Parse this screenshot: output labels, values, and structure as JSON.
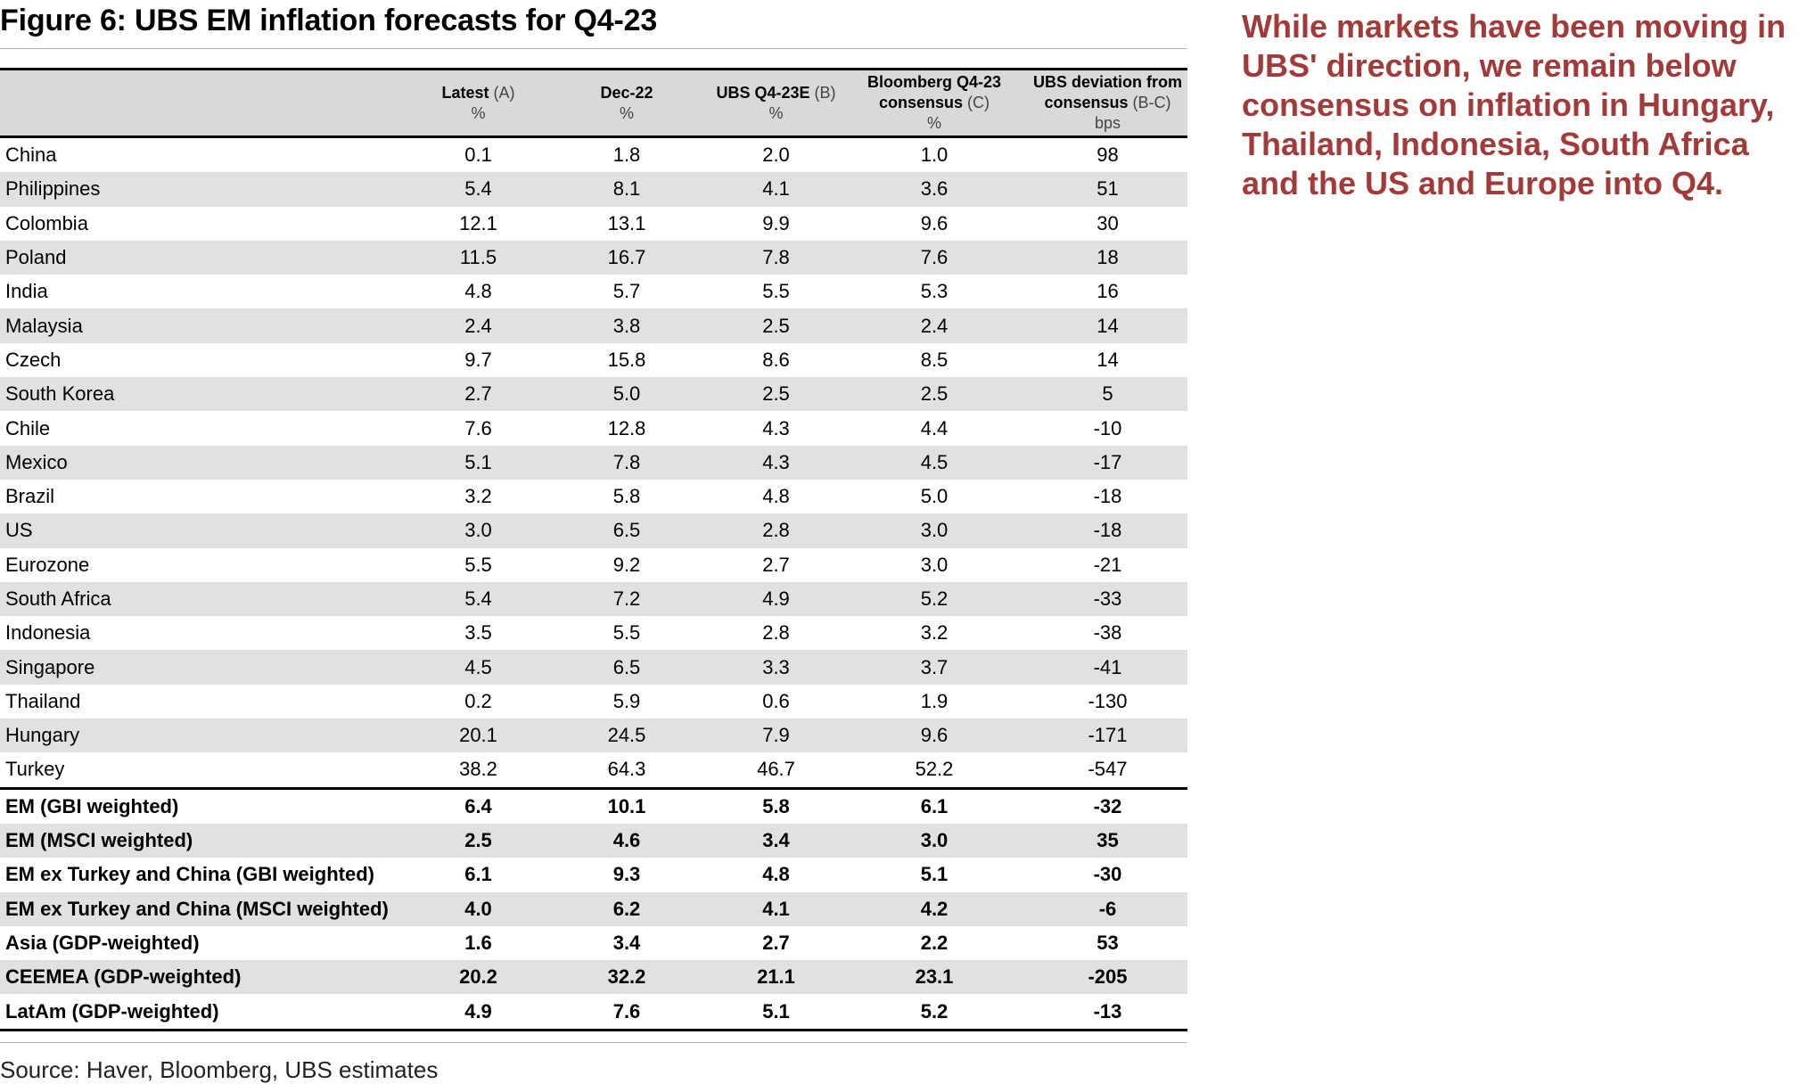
{
  "title": "Figure 6: UBS EM inflation forecasts for Q4-23",
  "side_note": "While markets have been moving in UBS' direction, we remain below consensus on inflation in Hungary, Thailand, Indonesia, South Africa and the US and Europe into Q4.",
  "source": "Source: Haver, Bloomberg, UBS estimates",
  "colors": {
    "note_text": "#a33a3a",
    "row_shade": "#e1e1e1",
    "header_shade": "#d9d9d9"
  },
  "columns": [
    {
      "label": "",
      "suffix": "",
      "unit": ""
    },
    {
      "label": "Latest",
      "suffix": "(A)",
      "unit": "%"
    },
    {
      "label": "Dec-22",
      "suffix": "",
      "unit": "%"
    },
    {
      "label": "UBS Q4-23E",
      "suffix": "(B)",
      "unit": "%"
    },
    {
      "label": "Bloomberg Q4-23 consensus",
      "label_line1": "Bloomberg Q4-23",
      "label_line2": "consensus",
      "suffix": "(C)",
      "unit": "%"
    },
    {
      "label": "UBS deviation from consensus",
      "label_line1": "UBS deviation from",
      "label_line2": "consensus",
      "suffix": "(B-C)",
      "unit": "bps"
    }
  ],
  "rows": [
    [
      "China",
      "0.1",
      "1.8",
      "2.0",
      "1.0",
      "98"
    ],
    [
      "Philippines",
      "5.4",
      "8.1",
      "4.1",
      "3.6",
      "51"
    ],
    [
      "Colombia",
      "12.1",
      "13.1",
      "9.9",
      "9.6",
      "30"
    ],
    [
      "Poland",
      "11.5",
      "16.7",
      "7.8",
      "7.6",
      "18"
    ],
    [
      "India",
      "4.8",
      "5.7",
      "5.5",
      "5.3",
      "16"
    ],
    [
      "Malaysia",
      "2.4",
      "3.8",
      "2.5",
      "2.4",
      "14"
    ],
    [
      "Czech",
      "9.7",
      "15.8",
      "8.6",
      "8.5",
      "14"
    ],
    [
      "South Korea",
      "2.7",
      "5.0",
      "2.5",
      "2.5",
      "5"
    ],
    [
      "Chile",
      "7.6",
      "12.8",
      "4.3",
      "4.4",
      "-10"
    ],
    [
      "Mexico",
      "5.1",
      "7.8",
      "4.3",
      "4.5",
      "-17"
    ],
    [
      "Brazil",
      "3.2",
      "5.8",
      "4.8",
      "5.0",
      "-18"
    ],
    [
      "US",
      "3.0",
      "6.5",
      "2.8",
      "3.0",
      "-18"
    ],
    [
      "Eurozone",
      "5.5",
      "9.2",
      "2.7",
      "3.0",
      "-21"
    ],
    [
      "South Africa",
      "5.4",
      "7.2",
      "4.9",
      "5.2",
      "-33"
    ],
    [
      "Indonesia",
      "3.5",
      "5.5",
      "2.8",
      "3.2",
      "-38"
    ],
    [
      "Singapore",
      "4.5",
      "6.5",
      "3.3",
      "3.7",
      "-41"
    ],
    [
      "Thailand",
      "0.2",
      "5.9",
      "0.6",
      "1.9",
      "-130"
    ],
    [
      "Hungary",
      "20.1",
      "24.5",
      "7.9",
      "9.6",
      "-171"
    ],
    [
      "Turkey",
      "38.2",
      "64.3",
      "46.7",
      "52.2",
      "-547"
    ]
  ],
  "aggregates": [
    [
      "EM (GBI weighted)",
      "6.4",
      "10.1",
      "5.8",
      "6.1",
      "-32"
    ],
    [
      "EM (MSCI weighted)",
      "2.5",
      "4.6",
      "3.4",
      "3.0",
      "35"
    ],
    [
      "EM ex Turkey and China (GBI weighted)",
      "6.1",
      "9.3",
      "4.8",
      "5.1",
      "-30"
    ],
    [
      "EM ex Turkey and China (MSCI weighted)",
      "4.0",
      "6.2",
      "4.1",
      "4.2",
      "-6"
    ],
    [
      "Asia (GDP-weighted)",
      "1.6",
      "3.4",
      "2.7",
      "2.2",
      "53"
    ],
    [
      "CEEMEA (GDP-weighted)",
      "20.2",
      "32.2",
      "21.1",
      "23.1",
      "-205"
    ],
    [
      "LatAm (GDP-weighted)",
      "4.9",
      "7.6",
      "5.1",
      "5.2",
      "-13"
    ]
  ]
}
